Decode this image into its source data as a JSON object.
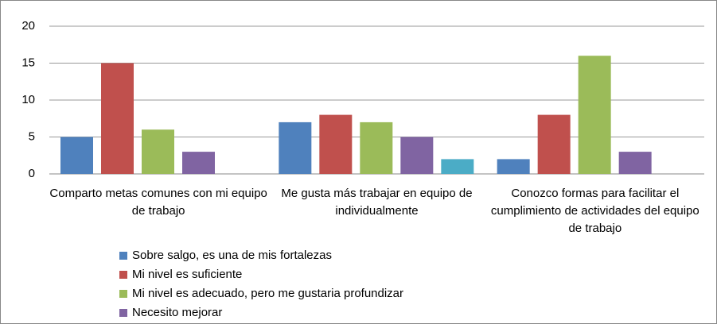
{
  "chart_data": {
    "type": "bar",
    "categories": [
      "Comparto metas comunes con mi equipo de trabajo",
      "Me gusta más trabajar en equipo de individualmente",
      "Conozco formas para facilitar el cumplimiento de actividades del equipo de trabajo"
    ],
    "series": [
      {
        "name": "Sobre salgo, es una de mis fortalezas",
        "color": "#4f81bd",
        "values": [
          5,
          7,
          2
        ]
      },
      {
        "name": "Mi nivel es suficiente",
        "color": "#c0504d",
        "values": [
          15,
          8,
          8
        ]
      },
      {
        "name": "Mi nivel es adecuado, pero me gustaria profundizar",
        "color": "#9bbb59",
        "values": [
          6,
          7,
          16
        ]
      },
      {
        "name": "Necesito mejorar",
        "color": "#8064a2",
        "values": [
          3,
          5,
          3
        ]
      },
      {
        "color": "#4bacc6",
        "values": [
          null,
          2,
          null
        ]
      }
    ],
    "ylim": [
      0,
      20
    ],
    "yticks": [
      0,
      5,
      10,
      15,
      20
    ],
    "grid": true
  }
}
